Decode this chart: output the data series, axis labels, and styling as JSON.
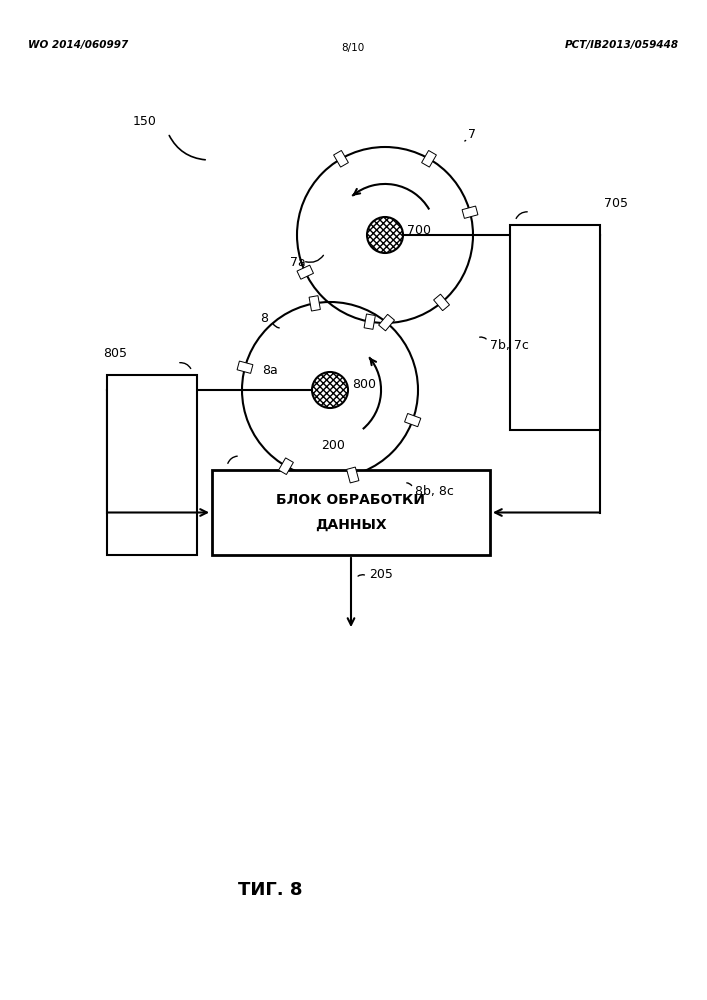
{
  "bg_color": "#ffffff",
  "header_left": "WO 2014/060997",
  "header_center": "8/10",
  "header_right": "PCT/IB2013/059448",
  "figure_label": "ΤИГ. 8",
  "box_text_line1": "БЛОК ОБРАБОТКИ",
  "box_text_line2": "ДАННЫХ",
  "lw": 1.5
}
